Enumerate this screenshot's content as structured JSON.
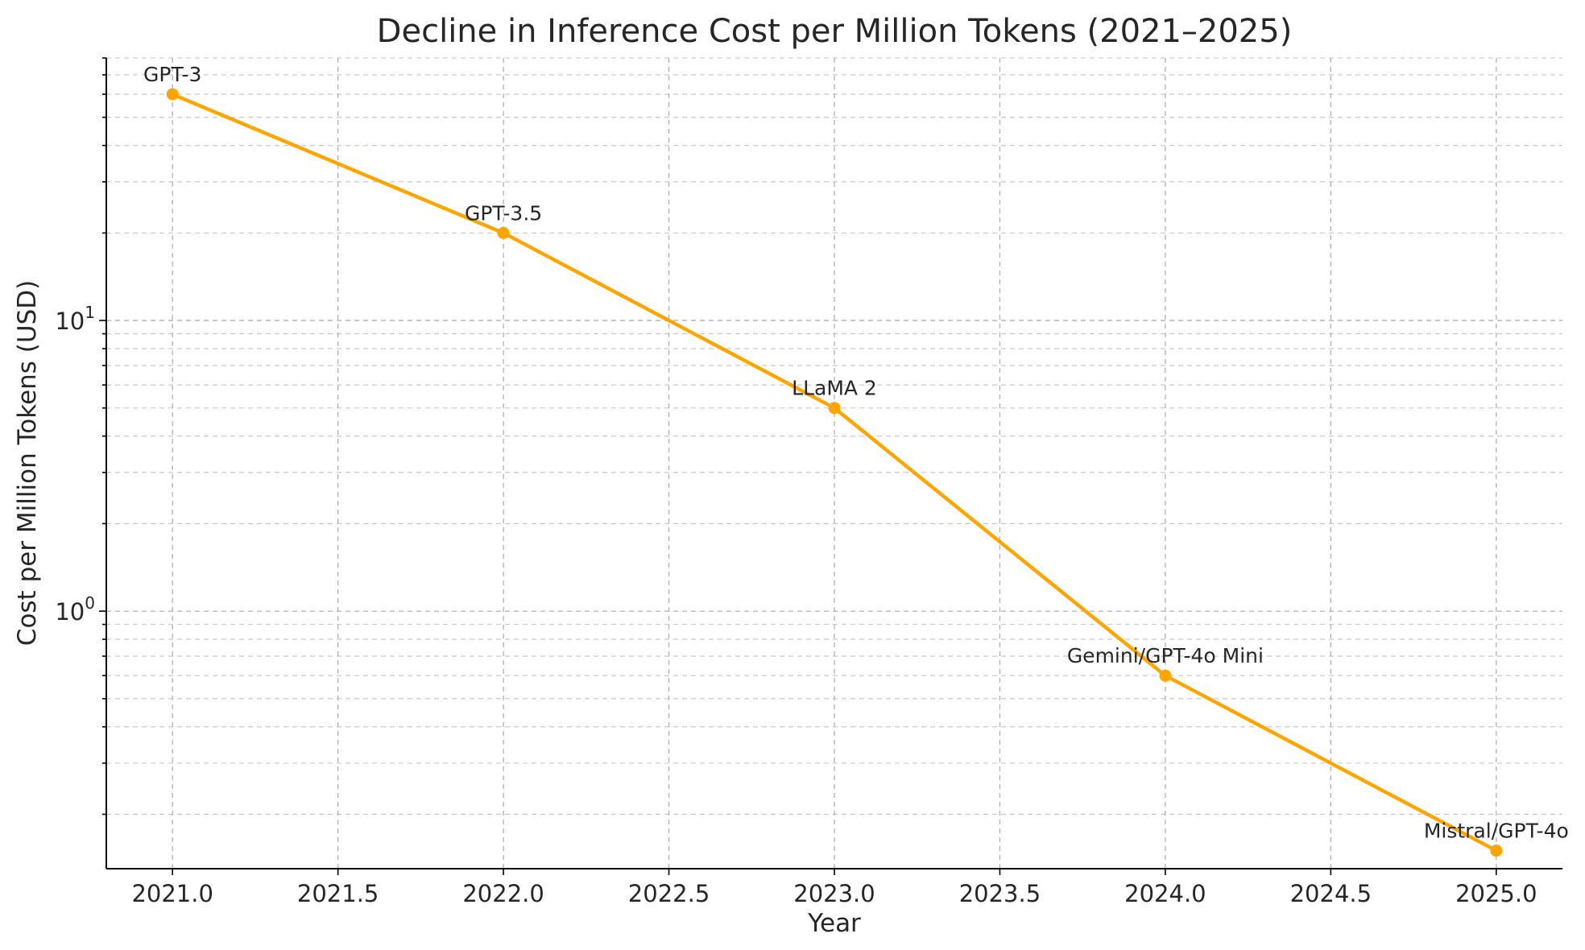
{
  "chart_data": {
    "type": "line",
    "title": "Decline in Inference Cost per Million Tokens (2021–2025)",
    "xlabel": "Year",
    "ylabel": "Cost per Million Tokens (USD)",
    "yscale": "log",
    "xlim": [
      2020.8,
      2025.2
    ],
    "ylim": [
      0.13,
      80
    ],
    "x_ticks": [
      "2021.0",
      "2021.5",
      "2022.0",
      "2022.5",
      "2023.0",
      "2023.5",
      "2024.0",
      "2024.5",
      "2025.0"
    ],
    "y_ticks": [
      {
        "value": 1,
        "base": "10",
        "exp": "0"
      },
      {
        "value": 10,
        "base": "10",
        "exp": "1"
      }
    ],
    "grid": true,
    "color": "#ffa500",
    "series": [
      {
        "name": "Cost per Million Tokens",
        "x": [
          2021,
          2022,
          2023,
          2024,
          2025
        ],
        "values": [
          60,
          20,
          5,
          0.6,
          0.15
        ],
        "labels": [
          "GPT-3",
          "GPT-3.5",
          "LLaMA 2",
          "Gemini/GPT-4o Mini",
          "Mistral/GPT-4o"
        ]
      }
    ]
  }
}
